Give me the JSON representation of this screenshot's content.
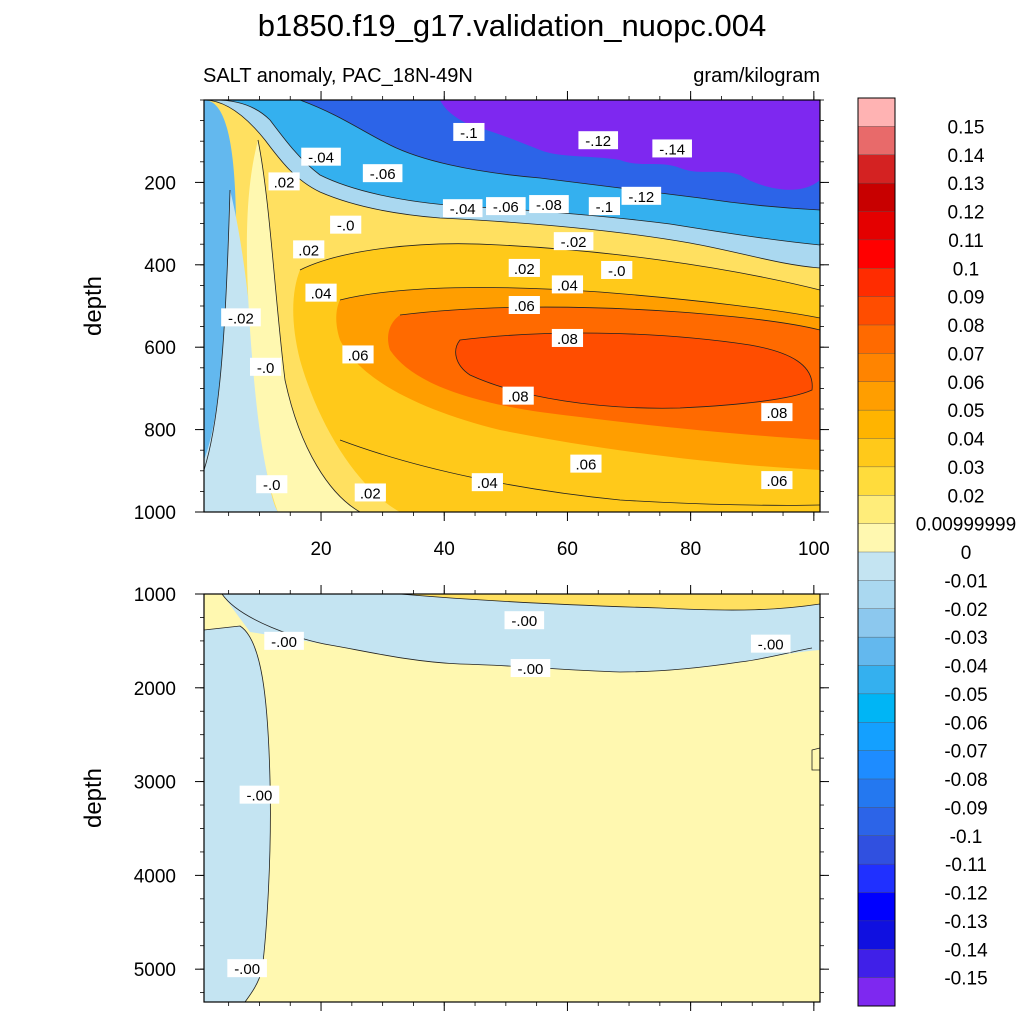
{
  "figure": {
    "title": "b1850.f19_g17.validation_nuopc.004"
  },
  "chart_data": [
    {
      "type": "heatmap",
      "subtitle_left": "SALT anomaly, PAC_18N-49N",
      "subtitle_right": "gram/kilogram",
      "ylabel": "depth",
      "xlabel": "",
      "xlim": [
        1,
        101
      ],
      "ylim": [
        0,
        1000
      ],
      "y_reversed": true,
      "x_ticks": [
        "20",
        "40",
        "60",
        "80",
        "100"
      ],
      "y_ticks": [
        "200",
        "400",
        "600",
        "800",
        "1000"
      ],
      "contour_labels": [
        {
          "text": "-.04",
          "x": 20,
          "y": 140
        },
        {
          "text": "-.06",
          "x": 30,
          "y": 180
        },
        {
          "text": "-.1",
          "x": 44,
          "y": 80
        },
        {
          "text": "-.12",
          "x": 65,
          "y": 100
        },
        {
          "text": "-.14",
          "x": 77,
          "y": 120
        },
        {
          "text": "-.04",
          "x": 43,
          "y": 265
        },
        {
          "text": "-.06",
          "x": 50,
          "y": 260
        },
        {
          "text": "-.08",
          "x": 57,
          "y": 255
        },
        {
          "text": "-.1",
          "x": 66,
          "y": 260
        },
        {
          "text": "-.12",
          "x": 72,
          "y": 235
        },
        {
          "text": ".02",
          "x": 14,
          "y": 200
        },
        {
          "text": "-.0",
          "x": 24,
          "y": 305
        },
        {
          "text": ".02",
          "x": 18,
          "y": 365
        },
        {
          "text": "-.02",
          "x": 61,
          "y": 345
        },
        {
          "text": "-.0",
          "x": 68,
          "y": 415
        },
        {
          "text": ".02",
          "x": 53,
          "y": 410
        },
        {
          "text": ".04",
          "x": 60,
          "y": 450
        },
        {
          "text": ".04",
          "x": 20,
          "y": 470
        },
        {
          "text": ".06",
          "x": 53,
          "y": 500
        },
        {
          "text": ".08",
          "x": 60,
          "y": 580
        },
        {
          "text": "-.02",
          "x": 7,
          "y": 530
        },
        {
          "text": ".06",
          "x": 26,
          "y": 620
        },
        {
          "text": "-.0",
          "x": 11,
          "y": 650
        },
        {
          "text": ".08",
          "x": 52,
          "y": 720
        },
        {
          "text": ".08",
          "x": 94,
          "y": 760
        },
        {
          "text": ".06",
          "x": 63,
          "y": 885
        },
        {
          "text": ".06",
          "x": 94,
          "y": 925
        },
        {
          "text": ".04",
          "x": 47,
          "y": 930
        },
        {
          "text": ".02",
          "x": 28,
          "y": 955
        },
        {
          "text": "-.0",
          "x": 12,
          "y": 935
        }
      ]
    },
    {
      "type": "heatmap",
      "ylabel": "depth",
      "xlabel": "",
      "xlim": [
        1,
        101
      ],
      "ylim": [
        1000,
        5350
      ],
      "y_reversed": true,
      "y_ticks": [
        "1000",
        "2000",
        "3000",
        "4000",
        "5000"
      ],
      "contour_labels": [
        {
          "text": "-.00",
          "x": 14,
          "y": 1510
        },
        {
          "text": "-.00",
          "x": 53,
          "y": 1290
        },
        {
          "text": "-.00",
          "x": 54,
          "y": 1800
        },
        {
          "text": "-.00",
          "x": 93,
          "y": 1540
        },
        {
          "text": "-.00",
          "x": 10,
          "y": 3150
        },
        {
          "text": "-.00",
          "x": 8,
          "y": 5000
        }
      ]
    }
  ],
  "colorbar": {
    "labels": [
      "0.15",
      "0.14",
      "0.13",
      "0.12",
      "0.11",
      "0.1",
      "0.09",
      "0.08",
      "0.07",
      "0.06",
      "0.05",
      "0.04",
      "0.03",
      "0.02",
      "0.00999999",
      "0",
      "-0.01",
      "-0.02",
      "-0.03",
      "-0.04",
      "-0.05",
      "-0.06",
      "-0.07",
      "-0.08",
      "-0.09",
      "-0.1",
      "-0.11",
      "-0.12",
      "-0.13",
      "-0.14",
      "-0.15"
    ],
    "colors": [
      "#ffb3b3",
      "#e86a6a",
      "#d42222",
      "#c80000",
      "#e40000",
      "#ff0000",
      "#ff2c00",
      "#ff4d00",
      "#ff6a00",
      "#ff8400",
      "#ff9e00",
      "#ffb400",
      "#ffc91a",
      "#ffdc3c",
      "#ffed7a",
      "#fff8b0",
      "#c4e4f2",
      "#aad8f0",
      "#8cc8ee",
      "#63b8ee",
      "#34b0ef",
      "#00b5f5",
      "#14a0ff",
      "#1e8cff",
      "#2478f0",
      "#2c64e8",
      "#3050e0",
      "#2030ff",
      "#0000ff",
      "#1010e0",
      "#4020e8",
      "#7e28f0"
    ]
  }
}
